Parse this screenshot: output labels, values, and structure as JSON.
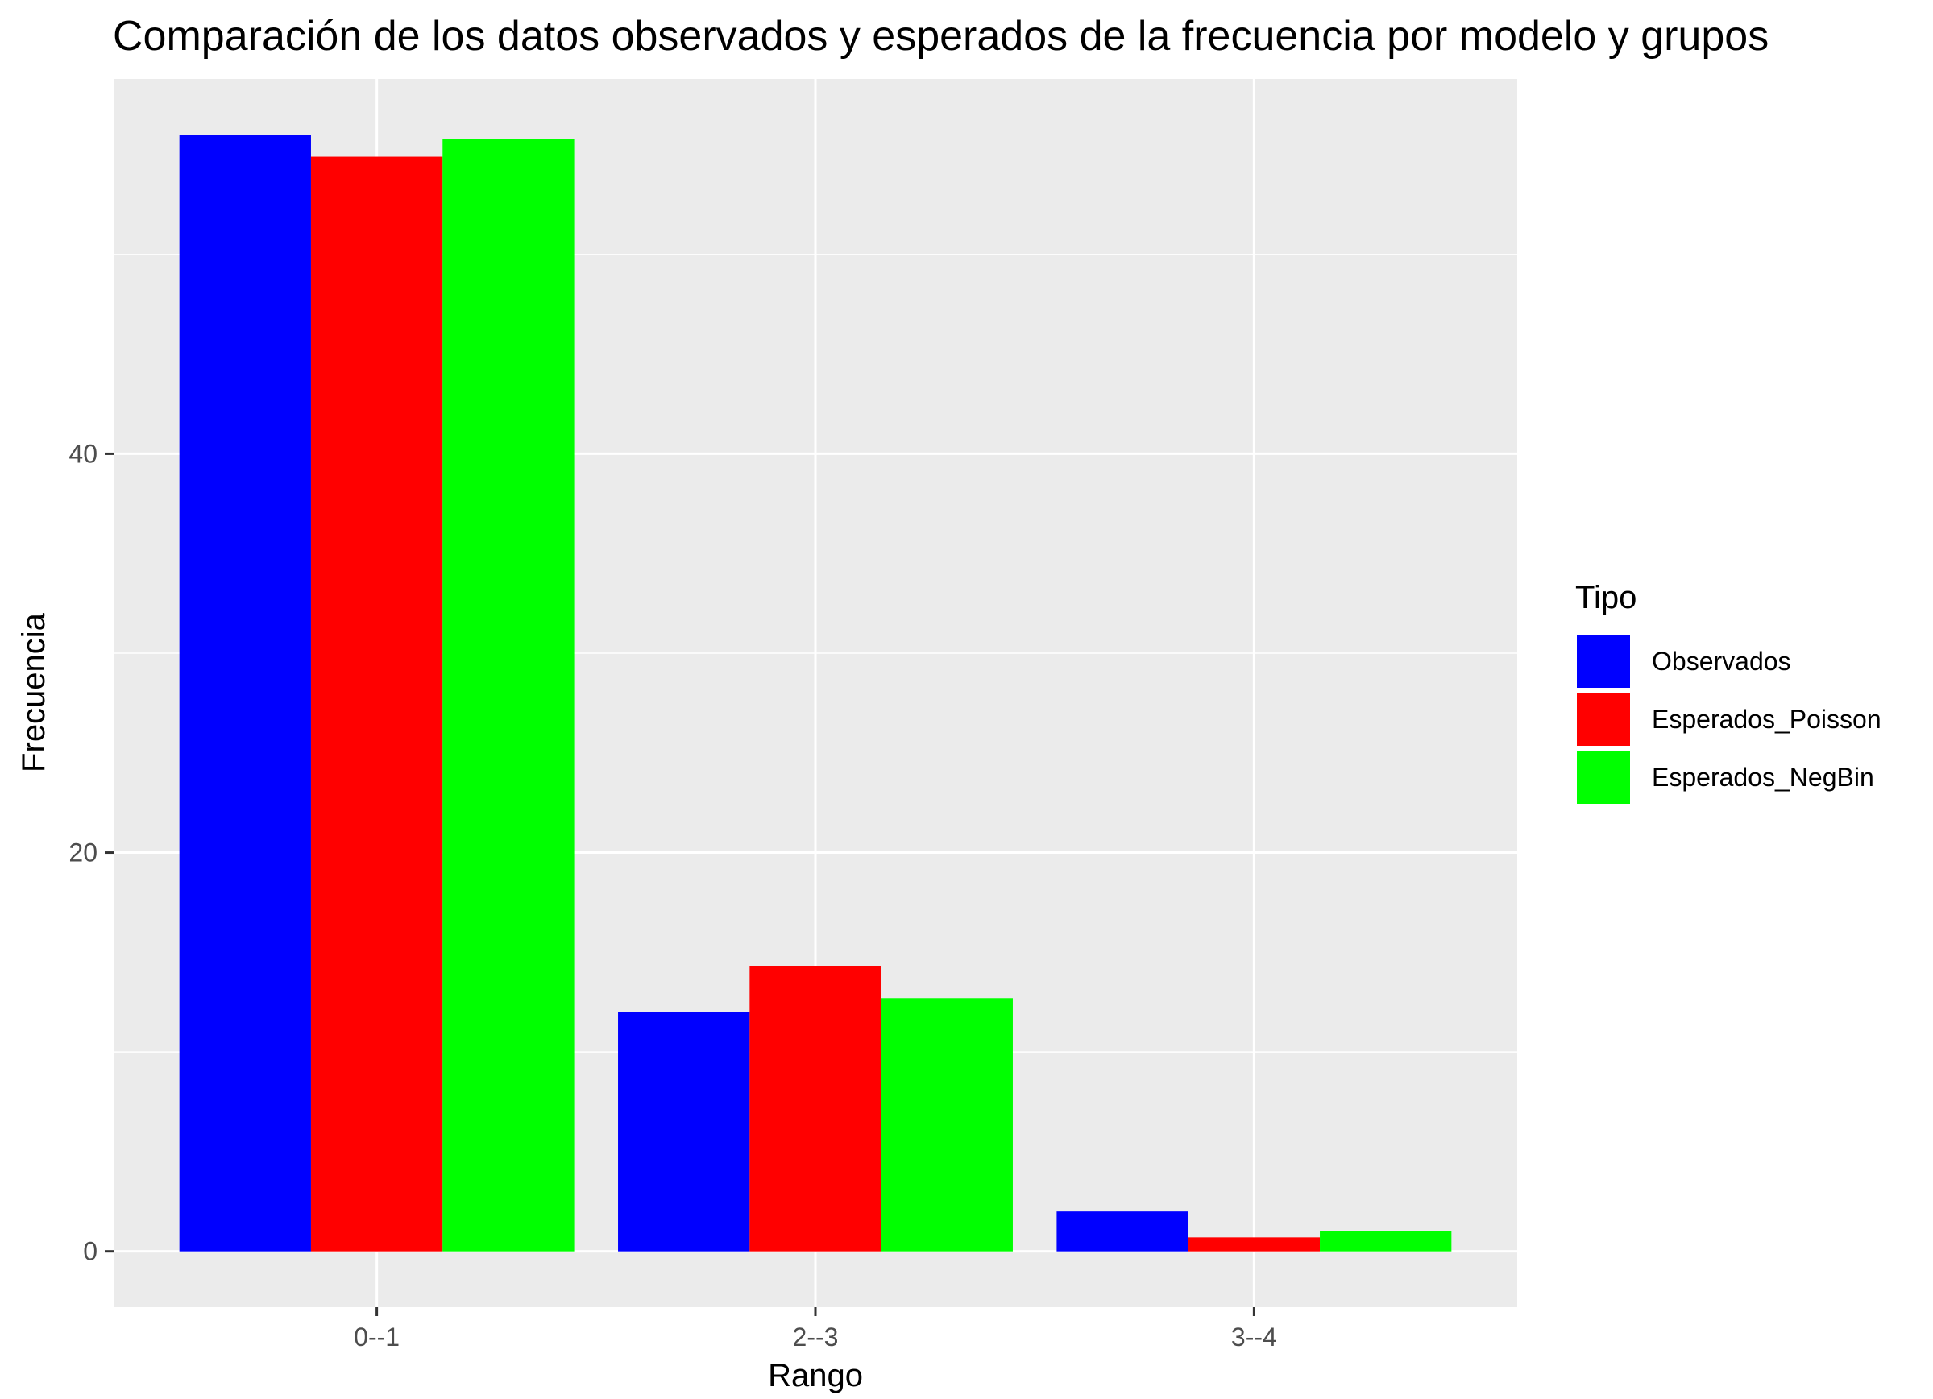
{
  "chart_data": {
    "type": "bar",
    "title": "Comparación de los datos observados y esperados de la frecuencia por modelo y grupos",
    "xlabel": "Rango",
    "ylabel": "Frecuencia",
    "categories": [
      "0--1",
      "2--3",
      "3--4"
    ],
    "series": [
      {
        "name": "Observados",
        "color": "#0000ff",
        "values": [
          56,
          12,
          2
        ]
      },
      {
        "name": "Esperados_Poisson",
        "color": "#ff0000",
        "values": [
          54.9,
          14.3,
          0.7
        ]
      },
      {
        "name": "Esperados_NegBin",
        "color": "#00ff00",
        "values": [
          55.8,
          12.7,
          1.0
        ]
      }
    ],
    "ylim": [
      -2.8,
      58.8
    ],
    "yticks": [
      0,
      20,
      40
    ],
    "yticks_minor": [
      10,
      30,
      50
    ],
    "grid": true,
    "panel_background": "#ebebeb",
    "legend": {
      "title": "Tipo",
      "placement": "right"
    }
  }
}
